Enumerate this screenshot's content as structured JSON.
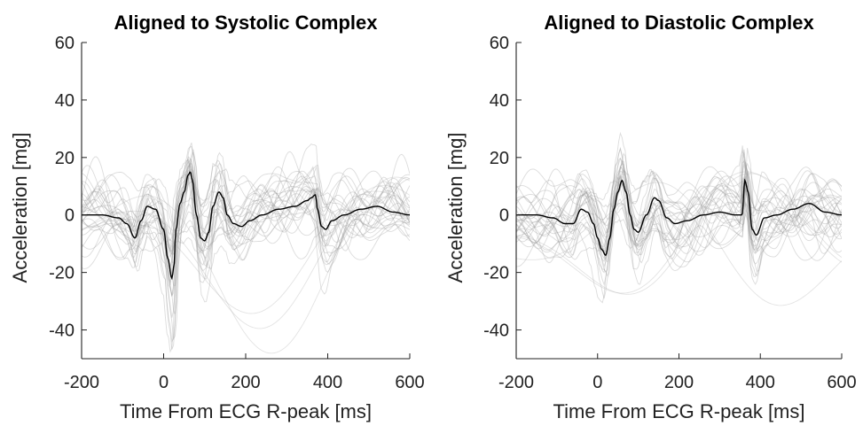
{
  "chart_data": [
    {
      "type": "line",
      "title": "Aligned to Systolic Complex",
      "xlabel": "Time From ECG R-peak [ms]",
      "ylabel": "Acceleration [mg]",
      "xlim": [
        -200,
        600
      ],
      "ylim": [
        -50,
        60
      ],
      "xticks": [
        -200,
        0,
        200,
        400,
        600
      ],
      "yticks": [
        -40,
        -20,
        0,
        20,
        40,
        60
      ],
      "grid": false,
      "series": [
        {
          "role": "mean",
          "color": "#000000",
          "x": [
            -200,
            -150,
            -110,
            -90,
            -70,
            -55,
            -40,
            -20,
            0,
            10,
            20,
            25,
            30,
            40,
            50,
            60,
            65,
            70,
            80,
            90,
            100,
            110,
            120,
            135,
            145,
            155,
            170,
            190,
            210,
            240,
            280,
            320,
            350,
            360,
            370,
            375,
            385,
            395,
            410,
            440,
            480,
            520,
            560,
            600
          ],
          "y": [
            0,
            0,
            -1,
            -3,
            -8,
            -2,
            3,
            2,
            -5,
            -15,
            -22,
            -18,
            -5,
            4,
            8,
            14,
            15,
            12,
            0,
            -8,
            -9,
            -6,
            3,
            8,
            6,
            0,
            -3,
            -4,
            -2,
            0,
            2,
            3,
            5,
            6,
            7,
            2,
            -4,
            -5,
            -2,
            0,
            2,
            3,
            1,
            0
          ]
        }
      ],
      "background_traces": "many light gray individual traces"
    },
    {
      "type": "line",
      "title": "Aligned to Diastolic Complex",
      "xlabel": "Time From ECG R-peak [ms]",
      "ylabel": "Acceleration [mg]",
      "xlim": [
        -200,
        600
      ],
      "ylim": [
        -50,
        60
      ],
      "xticks": [
        -200,
        0,
        200,
        400,
        600
      ],
      "yticks": [
        -40,
        -20,
        0,
        20,
        40,
        60
      ],
      "grid": false,
      "series": [
        {
          "role": "mean",
          "color": "#000000",
          "x": [
            -200,
            -150,
            -110,
            -80,
            -60,
            -40,
            -25,
            -10,
            0,
            10,
            20,
            30,
            40,
            50,
            60,
            70,
            80,
            90,
            100,
            120,
            140,
            150,
            170,
            190,
            220,
            260,
            300,
            340,
            355,
            362,
            370,
            380,
            390,
            410,
            440,
            480,
            520,
            560,
            600
          ],
          "y": [
            0,
            0,
            -1,
            -3,
            -3,
            2,
            1,
            -3,
            -8,
            -12,
            -14,
            -8,
            2,
            8,
            12,
            8,
            0,
            -5,
            -6,
            0,
            6,
            5,
            -1,
            -3,
            -2,
            0,
            1,
            0,
            0,
            12,
            8,
            -5,
            -7,
            -1,
            0,
            2,
            4,
            1,
            0
          ]
        }
      ],
      "background_traces": "many light gray individual traces"
    }
  ]
}
